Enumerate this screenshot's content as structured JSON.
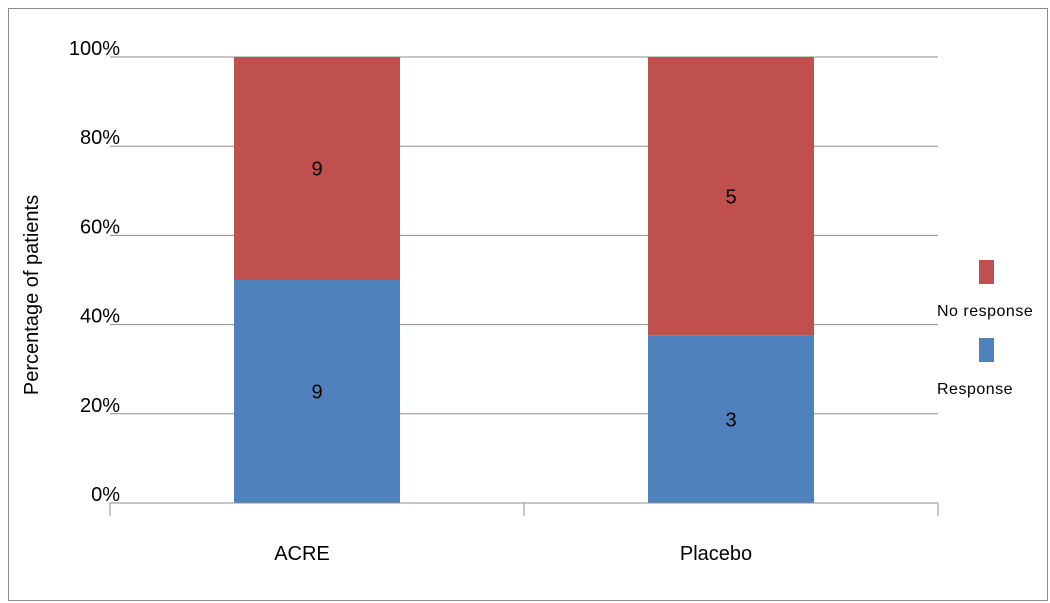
{
  "chart_data": {
    "type": "bar",
    "stacked": true,
    "percent_stacked": true,
    "categories": [
      "ACRE",
      "Placebo"
    ],
    "series": [
      {
        "name": "Response",
        "values": [
          9,
          3
        ],
        "color": "#4f81bd"
      },
      {
        "name": "No response",
        "values": [
          9,
          5
        ],
        "color": "#c0504d"
      }
    ],
    "ylabel": "Percentage of patients",
    "xlabel": "",
    "title": "",
    "ylim": [
      0,
      100
    ],
    "yticks": [
      "0%",
      "20%",
      "40%",
      "60%",
      "80%",
      "100%"
    ],
    "grid": true,
    "legend": "right",
    "legend_order": [
      "No response",
      "Response"
    ]
  }
}
